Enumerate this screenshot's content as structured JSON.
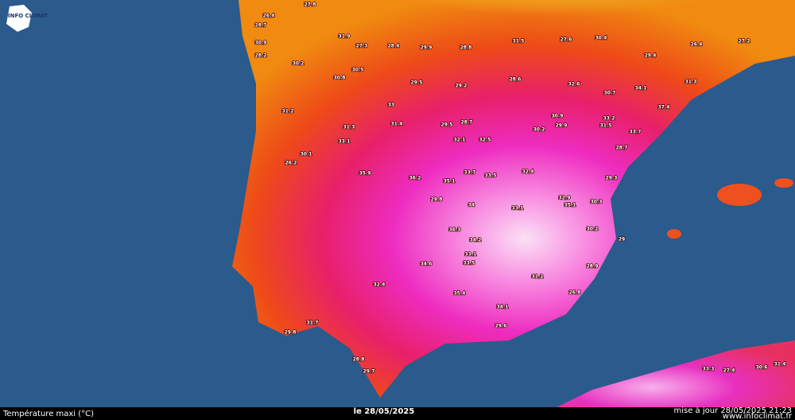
{
  "header": {
    "logo": "INFO CLIMAT"
  },
  "footer": {
    "title": "Température maxi (°C)",
    "date": "le 28/05/2025",
    "update": "mise à jour 28/05/2025 21:23",
    "site": "www.infoclimat.fr"
  },
  "stations": [
    27.8,
    26.4,
    28.7,
    30.9,
    28.2,
    31.9,
    27.3,
    28.4,
    29.9,
    28.8,
    31.5,
    27.6,
    30.4,
    29.4,
    26.4,
    27.2,
    30.2,
    30.5,
    30.8,
    33,
    31.4,
    29.5,
    29.2,
    28.6,
    32.6,
    30.7,
    34.1,
    37.4,
    31.3,
    31.2,
    31.3,
    33.1,
    30.1,
    29.5,
    28.7,
    32.1,
    32.5,
    30.9,
    30.2,
    29.9,
    33.7,
    33.2,
    31.5,
    28.7,
    26.2,
    35.1,
    35.9,
    33.7,
    36.2,
    33.5,
    32.4,
    32.9,
    33.1,
    29.8,
    34,
    30.3,
    30.2,
    29,
    34.2,
    33.5,
    34.6,
    36.3,
    32.4,
    33.1,
    35.4,
    34.1,
    31.2,
    28.9,
    26.8,
    29.6,
    31.7,
    29.7,
    28.8,
    29.8,
    27.4,
    33.3,
    30.6,
    31.4,
    35.1,
    29.3
  ]
}
